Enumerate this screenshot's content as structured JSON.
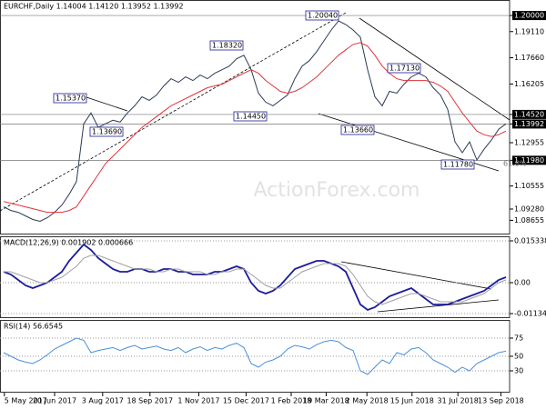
{
  "chart_data": [
    {
      "type": "line",
      "title": "EURCHF,Daily 1.14004 1.14120 1.13952 1.13992",
      "ylim": [
        1.0787,
        1.2086
      ],
      "yticks": [
        {
          "value": 1.2,
          "label": "1.20000",
          "highlight": true
        },
        {
          "value": 1.1911,
          "label": "1.19110"
        },
        {
          "value": 1.1766,
          "label": "1.17660"
        },
        {
          "value": 1.16205,
          "label": "1.16205"
        },
        {
          "value": 1.1452,
          "label": "1.14520",
          "highlight": true
        },
        {
          "value": 1.13992,
          "label": "1.13992",
          "highlight": true
        },
        {
          "value": 1.12955,
          "label": "1.12955"
        },
        {
          "value": 1.1198,
          "label": "1.11980",
          "highlight": true
        },
        {
          "value": 1.10555,
          "label": "1.10555"
        },
        {
          "value": 1.0928,
          "label": "1.09280"
        },
        {
          "value": 1.08655,
          "label": "1.08655"
        }
      ],
      "series": [
        {
          "name": "EURCHF",
          "color": "#2b3a55",
          "values": [
            1.094,
            1.092,
            1.091,
            1.089,
            1.087,
            1.086,
            1.088,
            1.091,
            1.095,
            1.101,
            1.108,
            1.14,
            1.146,
            1.138,
            1.14,
            1.142,
            1.141,
            1.146,
            1.15,
            1.155,
            1.153,
            1.156,
            1.161,
            1.165,
            1.163,
            1.166,
            1.164,
            1.167,
            1.165,
            1.168,
            1.17,
            1.172,
            1.176,
            1.178,
            1.17,
            1.157,
            1.152,
            1.15,
            1.153,
            1.156,
            1.165,
            1.172,
            1.175,
            1.18,
            1.186,
            1.192,
            1.197,
            1.195,
            1.192,
            1.188,
            1.17,
            1.155,
            1.15,
            1.158,
            1.157,
            1.162,
            1.166,
            1.168,
            1.166,
            1.16,
            1.156,
            1.148,
            1.13,
            1.124,
            1.13,
            1.12,
            1.126,
            1.131,
            1.137,
            1.14
          ]
        },
        {
          "name": "MA",
          "color": "#e0323a",
          "values": [
            1.097,
            1.096,
            1.095,
            1.094,
            1.093,
            1.092,
            1.091,
            1.091,
            1.091,
            1.092,
            1.094,
            1.1,
            1.106,
            1.112,
            1.118,
            1.122,
            1.126,
            1.13,
            1.134,
            1.138,
            1.141,
            1.144,
            1.147,
            1.15,
            1.152,
            1.154,
            1.156,
            1.158,
            1.16,
            1.161,
            1.162,
            1.164,
            1.166,
            1.168,
            1.17,
            1.168,
            1.164,
            1.161,
            1.158,
            1.157,
            1.158,
            1.16,
            1.163,
            1.166,
            1.17,
            1.174,
            1.178,
            1.181,
            1.184,
            1.185,
            1.183,
            1.178,
            1.172,
            1.168,
            1.165,
            1.164,
            1.164,
            1.164,
            1.164,
            1.163,
            1.161,
            1.158,
            1.152,
            1.146,
            1.141,
            1.136,
            1.134,
            1.133,
            1.134,
            1.136
          ]
        }
      ],
      "annotations": [
        "1.20040",
        "1.18320",
        "1.15370",
        "1.13690",
        "1.14450",
        "1.13660",
        "1.17130",
        "1.11780",
        "61.8%"
      ],
      "watermark": "ActionForex.com"
    },
    {
      "type": "line",
      "title": "MACD(12,26,9) 0.001902 0.000666",
      "ylim": [
        -0.013,
        0.017
      ],
      "yticks": [
        {
          "value": 0.015338,
          "label": "0.015338"
        },
        {
          "value": 0,
          "label": "0.00"
        },
        {
          "value": -0.011344,
          "label": "-0.011344"
        }
      ],
      "series": [
        {
          "name": "MACD",
          "color": "#1c1c9c",
          "values": [
            0.004,
            0.003,
            0.001,
            -0.001,
            -0.002,
            -0.001,
            0.0,
            0.002,
            0.004,
            0.008,
            0.011,
            0.014,
            0.012,
            0.009,
            0.007,
            0.005,
            0.004,
            0.004,
            0.005,
            0.005,
            0.004,
            0.004,
            0.005,
            0.005,
            0.004,
            0.004,
            0.003,
            0.003,
            0.003,
            0.004,
            0.004,
            0.005,
            0.006,
            0.005,
            0.0,
            -0.003,
            -0.004,
            -0.003,
            -0.001,
            0.002,
            0.005,
            0.006,
            0.007,
            0.008,
            0.008,
            0.007,
            0.006,
            0.004,
            -0.002,
            -0.008,
            -0.01,
            -0.009,
            -0.007,
            -0.005,
            -0.004,
            -0.003,
            -0.002,
            -0.004,
            -0.006,
            -0.008,
            -0.008,
            -0.008,
            -0.007,
            -0.006,
            -0.005,
            -0.004,
            -0.003,
            -0.001,
            0.001,
            0.002
          ]
        },
        {
          "name": "Signal",
          "color": "#a0a0a0",
          "values": [
            0.004,
            0.004,
            0.003,
            0.002,
            0.001,
            0.0,
            0.0,
            0.001,
            0.002,
            0.004,
            0.006,
            0.009,
            0.01,
            0.01,
            0.009,
            0.008,
            0.007,
            0.006,
            0.005,
            0.005,
            0.005,
            0.004,
            0.004,
            0.005,
            0.005,
            0.004,
            0.004,
            0.004,
            0.003,
            0.003,
            0.004,
            0.004,
            0.005,
            0.005,
            0.003,
            0.001,
            -0.001,
            -0.002,
            -0.002,
            0.0,
            0.002,
            0.004,
            0.005,
            0.006,
            0.007,
            0.007,
            0.007,
            0.006,
            0.003,
            -0.001,
            -0.005,
            -0.007,
            -0.008,
            -0.007,
            -0.006,
            -0.005,
            -0.004,
            -0.004,
            -0.005,
            -0.006,
            -0.007,
            -0.007,
            -0.007,
            -0.007,
            -0.006,
            -0.005,
            -0.004,
            -0.002,
            0.0,
            0.001
          ]
        }
      ]
    },
    {
      "type": "line",
      "title": "RSI(14) 56.6545",
      "ylim": [
        0,
        100
      ],
      "yticks": [
        75,
        50,
        30
      ],
      "series": [
        {
          "name": "RSI",
          "color": "#4a90d9",
          "values": [
            55,
            50,
            45,
            42,
            40,
            45,
            52,
            60,
            65,
            70,
            75,
            72,
            55,
            58,
            60,
            62,
            58,
            62,
            65,
            60,
            62,
            64,
            60,
            58,
            62,
            55,
            60,
            63,
            58,
            62,
            60,
            65,
            68,
            62,
            40,
            35,
            42,
            45,
            50,
            60,
            65,
            63,
            60,
            66,
            70,
            72,
            70,
            62,
            58,
            30,
            25,
            35,
            45,
            40,
            55,
            52,
            60,
            62,
            55,
            45,
            40,
            35,
            28,
            35,
            30,
            40,
            45,
            50,
            55,
            57
          ]
        }
      ],
      "xlim": [
        -0.5,
        69.5
      ],
      "xticks": [
        {
          "value": 0.1,
          "label": "5 May 2017"
        },
        {
          "value": 7,
          "label": "20 Jun 2017"
        },
        {
          "value": 13.6,
          "label": "3 Aug 2017"
        },
        {
          "value": 20.1,
          "label": "18 Sep 2017"
        },
        {
          "value": 26.8,
          "label": "1 Nov 2017"
        },
        {
          "value": 33.3,
          "label": "15 Dec 2017"
        },
        {
          "value": 39.5,
          "label": "1 Feb 2018"
        },
        {
          "value": 44.3,
          "label": "19 Mar 2018"
        },
        {
          "value": 49.9,
          "label": "2 May 2018"
        },
        {
          "value": 56.1,
          "label": "15 Jun 2018"
        },
        {
          "value": 62.4,
          "label": "31 Jul 2018"
        },
        {
          "value": 68.3,
          "label": "13 Sep 2018"
        }
      ]
    }
  ]
}
